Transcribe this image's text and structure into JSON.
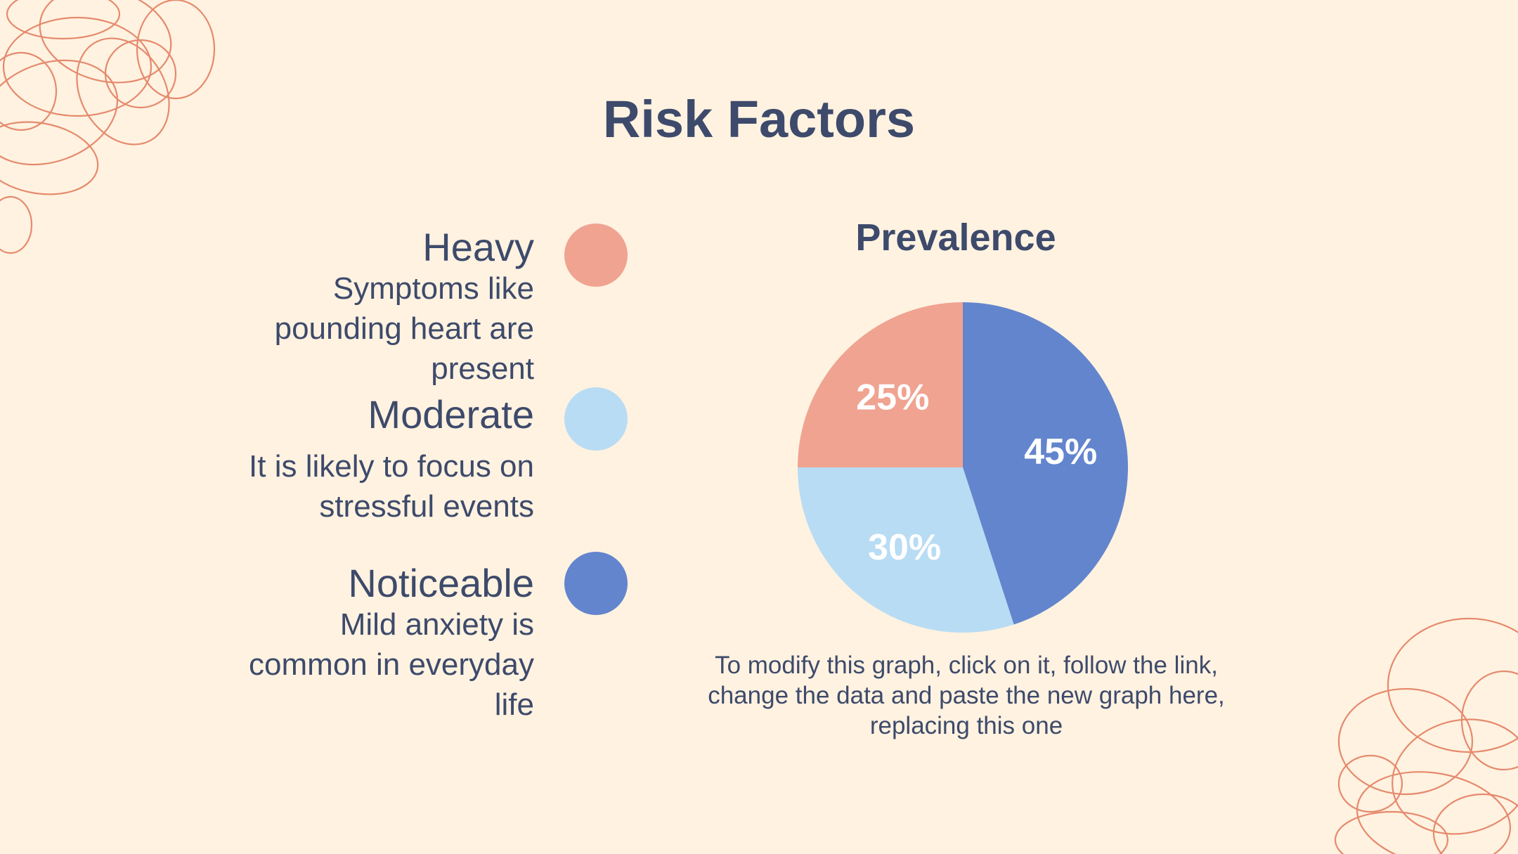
{
  "slide": {
    "title": "Risk Factors",
    "factors": [
      {
        "name": "Heavy",
        "description": "Symptoms like pounding heart are present",
        "color": "#F0A391"
      },
      {
        "name": "Moderate",
        "description": "It is likely to focus on stressful events",
        "color": "#B8DCF4"
      },
      {
        "name": "Noticeable",
        "description": "Mild anxiety is common in everyday life",
        "color": "#6385CD"
      }
    ],
    "note": "To modify this graph, click on it, follow the link, change the data and paste the new graph here, replacing this one"
  },
  "chart_data": {
    "type": "pie",
    "title": "Prevalence",
    "categories": [
      "Heavy",
      "Moderate",
      "Noticeable"
    ],
    "values": [
      25,
      30,
      45
    ],
    "labels": [
      "25%",
      "30%",
      "45%"
    ],
    "colors": [
      "#F0A391",
      "#B8DCF4",
      "#6385CD"
    ],
    "start": "top, clockwise from Noticeable"
  },
  "colors": {
    "background": "#FFF2E0",
    "text": "#3D4A6B",
    "decoration": "#E58A6E"
  }
}
